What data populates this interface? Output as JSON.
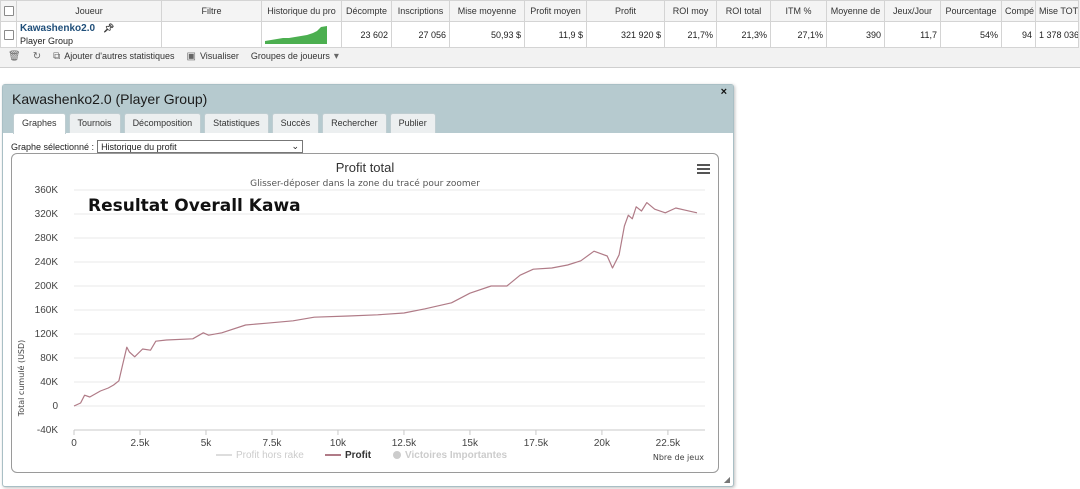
{
  "table": {
    "headers": [
      "Joueur",
      "Filtre",
      "Historique du pro",
      "Décompte",
      "Inscriptions",
      "Mise moyenne",
      "Profit moyen",
      "Profit",
      "ROI moy",
      "ROI total",
      "ITM %",
      "Moyenne de",
      "Jeux/Jour",
      "Pourcentage",
      "Compé",
      "Mise TOT."
    ],
    "row": {
      "player_name": "Kawashenko2.0",
      "player_group": "Player Group",
      "filter": "",
      "values": [
        "23 602",
        "27 056",
        "50,93 $",
        "11,9 $",
        "321 920 $",
        "21,7%",
        "21,3%",
        "27,1%",
        "390",
        "11,7",
        "54%",
        "94",
        "1 378 036 $"
      ]
    }
  },
  "footer_actions": [
    {
      "icon": "trash-icon",
      "label": ""
    },
    {
      "icon": "refresh-icon",
      "label": ""
    },
    {
      "icon": "external-link-icon",
      "label": "Ajouter d'autres statistiques"
    },
    {
      "icon": "image-icon",
      "label": "Visualiser"
    },
    {
      "icon": "caret-down-icon",
      "label": "Groupes de joueurs"
    }
  ],
  "panel": {
    "title": "Kawashenko2.0 (Player Group)",
    "close": "×",
    "tabs": [
      "Graphes",
      "Tournois",
      "Décomposition",
      "Statistiques",
      "Succès",
      "Rechercher",
      "Publier"
    ],
    "active_tab": "Graphes",
    "select_label": "Graphe sélectionné :",
    "select_value": "Historique du profit"
  },
  "colors": {
    "header_bg": "#b6cacf",
    "profit_line": "#b07b87",
    "sparkline": "#4caf50",
    "player_link": "#1f4e79"
  },
  "chart_data": {
    "type": "line",
    "title": "Profit total",
    "subtitle": "Glisser-déposer dans la zone du tracé pour zoomer",
    "annotation": "Resultat Overall Kawa",
    "ylabel": "Total cumulé (USD)",
    "xlabel": "Nbre de jeux",
    "xlim": [
      0,
      23602
    ],
    "ylim": [
      -40000,
      360000
    ],
    "x_ticks": [
      "0",
      "2.5k",
      "5k",
      "7.5k",
      "10k",
      "12.5k",
      "15k",
      "17.5k",
      "20k",
      "22.5k"
    ],
    "y_ticks": [
      "-40K",
      "0",
      "40K",
      "80K",
      "120K",
      "160K",
      "200K",
      "240K",
      "280K",
      "320K",
      "360K"
    ],
    "legend": [
      "Profit hors rake",
      "Profit",
      "Victoires Importantes"
    ],
    "legend_placement": "bottom",
    "grid": true,
    "series": [
      {
        "name": "Profit",
        "x": [
          0,
          250,
          400,
          600,
          1000,
          1300,
          1500,
          1700,
          1850,
          2000,
          2100,
          2300,
          2600,
          2900,
          3100,
          3500,
          4500,
          4900,
          5100,
          5600,
          6500,
          7300,
          8300,
          9100,
          10400,
          11500,
          12500,
          13300,
          14300,
          15000,
          15800,
          16400,
          16900,
          17400,
          18100,
          18700,
          19200,
          19700,
          20200,
          20400,
          20650,
          20850,
          21000,
          21150,
          21300,
          21500,
          21700,
          22000,
          22400,
          22800,
          23200,
          23602
        ],
        "y": [
          0,
          5000,
          18000,
          15000,
          25000,
          30000,
          35000,
          42000,
          70000,
          98000,
          90000,
          82000,
          95000,
          93000,
          108000,
          110000,
          112000,
          122000,
          118000,
          122000,
          135000,
          138000,
          142000,
          148000,
          150000,
          152000,
          155000,
          162000,
          172000,
          188000,
          200000,
          200000,
          218000,
          228000,
          230000,
          235000,
          242000,
          258000,
          250000,
          230000,
          252000,
          300000,
          318000,
          312000,
          332000,
          325000,
          339000,
          328000,
          322000,
          330000,
          326000,
          322000
        ]
      }
    ]
  }
}
